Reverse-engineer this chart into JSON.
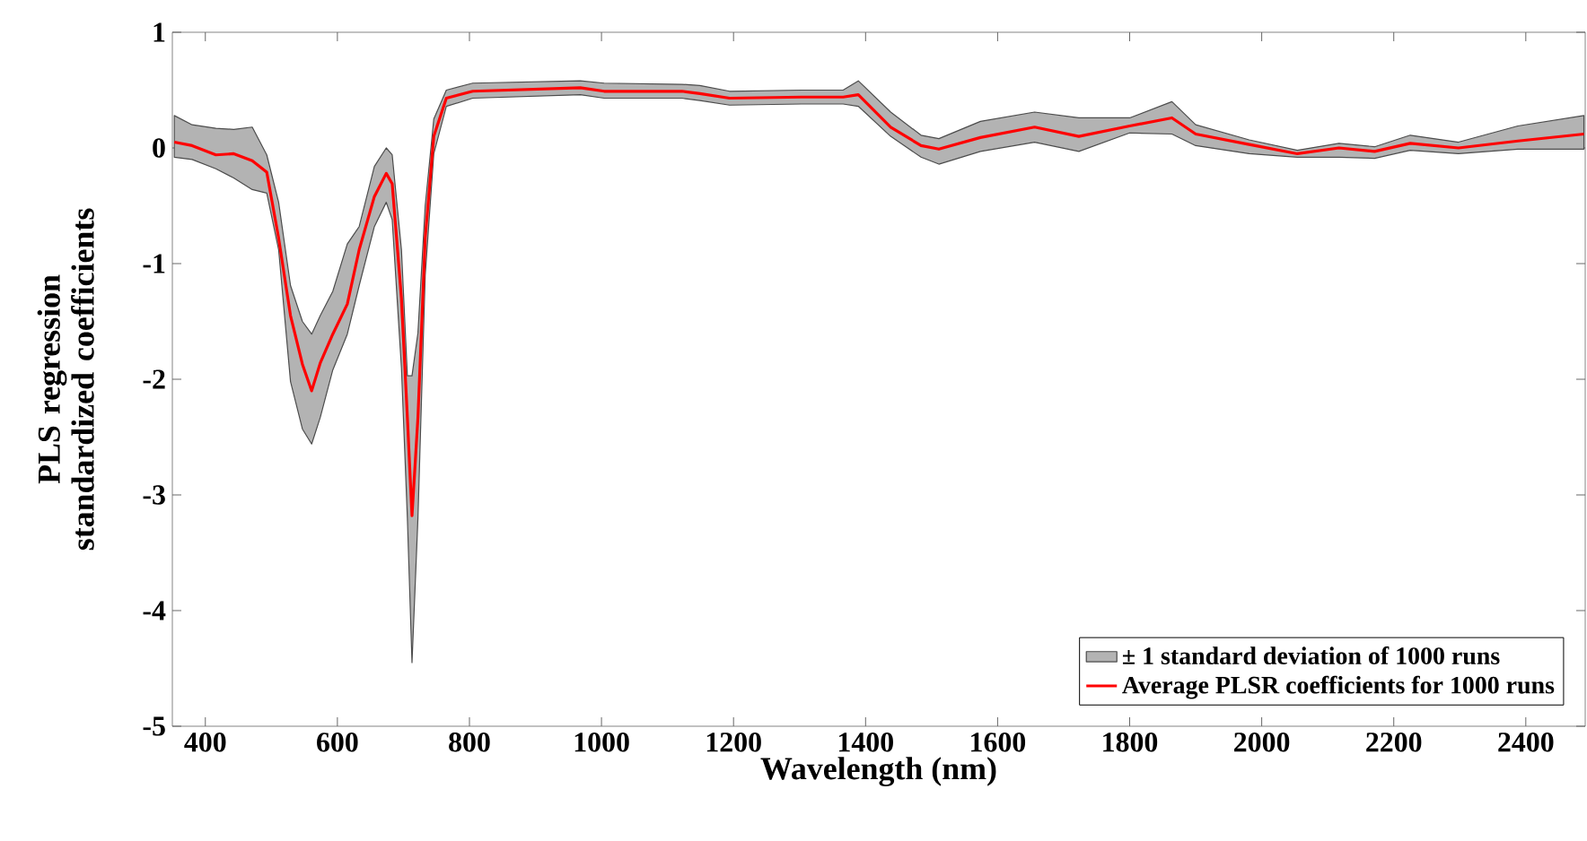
{
  "chart_data": {
    "type": "line",
    "xlabel": "Wavelength (nm)",
    "ylabel": "PLS regression standardized coefficients",
    "x": [
      353,
      380,
      416,
      443,
      471,
      493,
      511,
      529,
      547,
      561,
      574,
      593,
      615,
      633,
      656,
      674,
      683,
      697,
      706,
      713,
      722,
      733,
      746,
      765,
      805,
      968,
      1004,
      1122,
      1149,
      1194,
      1303,
      1366,
      1389,
      1438,
      1484,
      1511,
      1574,
      1656,
      1723,
      1800,
      1864,
      1900,
      1981,
      2054,
      2117,
      2171,
      2225,
      2298,
      2388,
      2488
    ],
    "series": [
      {
        "type": "area",
        "name": "± 1 standard deviation of 1000 runs",
        "color": "#b3b3b3",
        "values": [
          null,
          null,
          null,
          null,
          null,
          null,
          null,
          null,
          null,
          null,
          null,
          null,
          null,
          null,
          null,
          null,
          null,
          null,
          null,
          null,
          null,
          null,
          null,
          null,
          null,
          null,
          null,
          null,
          null,
          null,
          null,
          null,
          null,
          null,
          null,
          null,
          null,
          null,
          null,
          null,
          null,
          null,
          null,
          null,
          null,
          null,
          null,
          null,
          null,
          null
        ],
        "lower": [
          -0.08,
          -0.1,
          -0.18,
          -0.26,
          -0.36,
          -0.39,
          -0.88,
          -2.02,
          -2.43,
          -2.56,
          -2.33,
          -1.92,
          -1.61,
          -1.19,
          -0.68,
          -0.47,
          -0.62,
          -1.9,
          -3.2,
          -4.45,
          -3.2,
          -1.1,
          -0.05,
          0.36,
          0.43,
          0.46,
          0.43,
          0.43,
          0.41,
          0.37,
          0.38,
          0.38,
          0.36,
          0.1,
          -0.08,
          -0.14,
          -0.03,
          0.05,
          -0.03,
          0.13,
          0.12,
          0.02,
          -0.05,
          -0.08,
          -0.08,
          -0.09,
          -0.02,
          -0.05,
          -0.01,
          -0.01
        ],
        "upper": [
          0.28,
          0.2,
          0.17,
          0.16,
          0.18,
          -0.06,
          -0.47,
          -1.19,
          -1.5,
          -1.61,
          -1.45,
          -1.24,
          -0.83,
          -0.68,
          -0.16,
          0.0,
          -0.06,
          -0.88,
          -1.97,
          -1.97,
          -1.6,
          -0.5,
          0.25,
          0.5,
          0.56,
          0.58,
          0.56,
          0.55,
          0.54,
          0.49,
          0.5,
          0.5,
          0.58,
          0.31,
          0.11,
          0.08,
          0.23,
          0.31,
          0.26,
          0.26,
          0.4,
          0.2,
          0.07,
          -0.02,
          0.04,
          0.01,
          0.11,
          0.05,
          0.19,
          0.28
        ]
      },
      {
        "name": "Average PLSR coefficients for 1000 runs",
        "color": "#ff0000",
        "values": [
          0.05,
          0.02,
          -0.06,
          -0.05,
          -0.11,
          -0.21,
          -0.78,
          -1.45,
          -1.87,
          -2.1,
          -1.86,
          -1.61,
          -1.35,
          -0.88,
          -0.42,
          -0.22,
          -0.31,
          -1.3,
          -2.33,
          -3.18,
          -2.33,
          -0.78,
          0.1,
          0.43,
          0.49,
          0.52,
          0.49,
          0.49,
          0.47,
          0.43,
          0.44,
          0.44,
          0.46,
          0.18,
          0.02,
          -0.01,
          0.09,
          0.18,
          0.1,
          0.19,
          0.26,
          0.12,
          0.03,
          -0.05,
          0.0,
          -0.03,
          0.04,
          0.0,
          0.06,
          0.12
        ]
      }
    ],
    "xlim": [
      350,
      2490
    ],
    "ylim": [
      -5,
      1
    ],
    "xticks": [
      400,
      600,
      800,
      1000,
      1200,
      1400,
      1600,
      1800,
      2000,
      2200,
      2400
    ],
    "yticks": [
      -5,
      -4,
      -3,
      -2,
      -1,
      0,
      1
    ],
    "grid": false,
    "legend": "bottom right",
    "marker": "none",
    "line_style": "solid"
  }
}
